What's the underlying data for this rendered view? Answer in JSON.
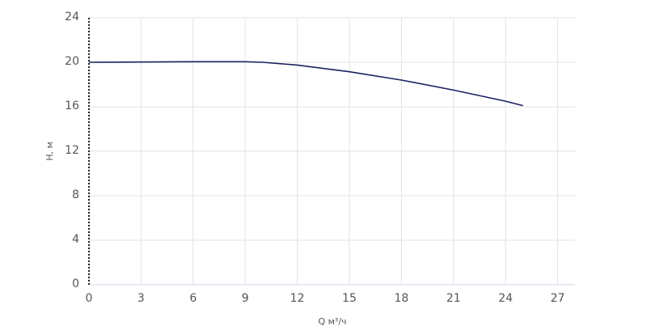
{
  "chart_data": {
    "type": "line",
    "xlabel": "Q м³/ч",
    "ylabel": "H, м",
    "x": [
      0,
      3,
      6,
      9,
      10,
      12,
      15,
      18,
      21,
      24,
      25
    ],
    "series": [
      {
        "color": "#1b205e",
        "values": [
          20,
          20.02,
          20.05,
          20.05,
          20.0,
          19.75,
          19.15,
          18.4,
          17.5,
          16.5,
          16.1
        ]
      }
    ],
    "xlim": [
      0,
      28
    ],
    "xticks": [
      0,
      3,
      6,
      9,
      12,
      15,
      18,
      21,
      24,
      27
    ],
    "ylim": [
      0,
      24
    ],
    "yticks": [
      0,
      4,
      8,
      12,
      16,
      20,
      24
    ],
    "grid": true
  }
}
